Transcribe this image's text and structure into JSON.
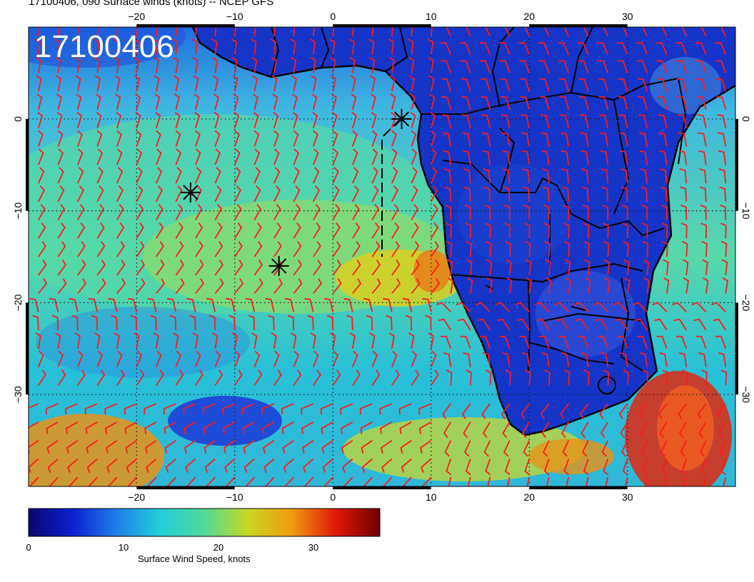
{
  "header": {
    "title": "17100406, 090 Surface winds (knots) -- NCEP GFS",
    "stamp": "17100406"
  },
  "map": {
    "lon_ticks": [
      "−20",
      "−10",
      "0",
      "10",
      "20",
      "30"
    ],
    "lat_ticks": [
      "0",
      "−10",
      "−20",
      "−30"
    ],
    "lon_range": [
      -31,
      41
    ],
    "lat_range": [
      -40,
      10
    ],
    "gridlines": "dotted",
    "barb_color": "#ff1a1a",
    "coast_color": "#000000",
    "markers": [
      {
        "lon": 7,
        "lat": 0
      },
      {
        "lon": -14.5,
        "lat": -8
      },
      {
        "lon": -5.5,
        "lat": -16
      }
    ],
    "track": [
      [
        6.9,
        0
      ],
      [
        5,
        -2
      ],
      [
        5,
        -15
      ]
    ]
  },
  "colorbar": {
    "title": "Surface Wind Speed, knots",
    "ticks": [
      "0",
      "10",
      "20",
      "30"
    ],
    "range": [
      0,
      37
    ],
    "colors": [
      "#08086e",
      "#0c1fd0",
      "#1f7fe8",
      "#22cfd8",
      "#4fd99a",
      "#c8d820",
      "#f09a10",
      "#e01808",
      "#6e0000"
    ]
  }
}
